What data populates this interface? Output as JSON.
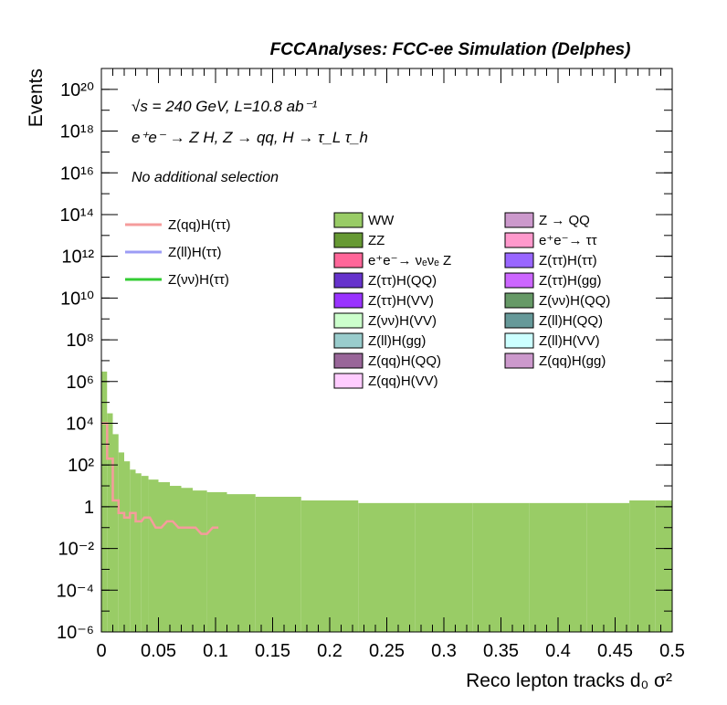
{
  "header": {
    "title": "FCCAnalyses: FCC-ee Simulation (Delphes)"
  },
  "annotations": {
    "energy_lumi": "√s = 240 GeV, L=10.8 ab⁻¹",
    "process": "e⁺e⁻ → Z H, Z → qq, H → τ_L τ_h",
    "selection": "No additional selection"
  },
  "chart_data": {
    "type": "histogram",
    "xlabel": "Reco lepton tracks d₀ σ²",
    "ylabel": "Events",
    "xlim": [
      0,
      0.5
    ],
    "ylim": [
      1e-06,
      1e+21
    ],
    "yscale": "log",
    "x_ticks": [
      "0",
      "0.05",
      "0.1",
      "0.15",
      "0.2",
      "0.25",
      "0.3",
      "0.35",
      "0.4",
      "0.45",
      "0.5"
    ],
    "y_ticks": [
      "10⁻⁶",
      "10⁻⁴",
      "10⁻²",
      "1",
      "10²",
      "10⁴",
      "10⁶",
      "10⁸",
      "10¹⁰",
      "10¹²",
      "10¹⁴",
      "10¹⁶",
      "10¹⁸",
      "10²⁰"
    ],
    "signal_legend": [
      {
        "label": "Z(qq)H(ττ)",
        "color": "#f59c9c"
      },
      {
        "label": "Z(ll)H(ττ)",
        "color": "#9c9cf5"
      },
      {
        "label": "Z(νν)H(ττ)",
        "color": "#33cc33"
      }
    ],
    "background_legend": [
      {
        "label": "WW",
        "color": "#99cc66"
      },
      {
        "label": "Z → QQ",
        "color": "#cc99cc"
      },
      {
        "label": "ZZ",
        "color": "#669933"
      },
      {
        "label": "e⁺e⁻→ ττ",
        "color": "#ff99cc"
      },
      {
        "label": "e⁺e⁻→ νₑνₑ Z",
        "color": "#ff6699"
      },
      {
        "label": "Z(ττ)H(ττ)",
        "color": "#9966ff"
      },
      {
        "label": "Z(ττ)H(QQ)",
        "color": "#6633cc"
      },
      {
        "label": "Z(ττ)H(gg)",
        "color": "#cc66ff"
      },
      {
        "label": "Z(ττ)H(VV)",
        "color": "#9933ff"
      },
      {
        "label": "Z(νν)H(QQ)",
        "color": "#669966"
      },
      {
        "label": "Z(νν)H(VV)",
        "color": "#ccffcc"
      },
      {
        "label": "Z(ll)H(QQ)",
        "color": "#669999"
      },
      {
        "label": "Z(ll)H(gg)",
        "color": "#99cccc"
      },
      {
        "label": "Z(ll)H(VV)",
        "color": "#ccffff"
      },
      {
        "label": "Z(qq)H(QQ)",
        "color": "#996699"
      },
      {
        "label": "Z(qq)H(gg)",
        "color": "#cc99cc"
      },
      {
        "label": "Z(qq)H(VV)",
        "color": "#ffccff"
      }
    ],
    "series_ww": {
      "name": "WW",
      "x_bins": [
        0.0025,
        0.0075,
        0.0125,
        0.0175,
        0.0225,
        0.0275,
        0.0325,
        0.0375,
        0.045,
        0.055,
        0.065,
        0.075,
        0.085,
        0.1,
        0.12,
        0.15,
        0.2,
        0.25,
        0.3,
        0.35,
        0.4,
        0.45,
        0.475,
        0.495
      ],
      "values": [
        3000000.0,
        30000.0,
        3000,
        400,
        150,
        60,
        40,
        30,
        20,
        15,
        10,
        8,
        6,
        5,
        4,
        3,
        2,
        1.5,
        1.5,
        1.5,
        1.5,
        1.5,
        2,
        2
      ]
    },
    "series_zqqhtautau": {
      "name": "Z(qq)H(ττ)",
      "x_bins": [
        0.0025,
        0.0075,
        0.0125,
        0.0175,
        0.0225,
        0.0275,
        0.0325,
        0.04,
        0.05,
        0.06,
        0.07,
        0.08,
        0.09,
        0.1
      ],
      "values": [
        10000.0,
        200,
        2,
        0.5,
        0.3,
        0.5,
        0.2,
        0.3,
        0.1,
        0.2,
        0.1,
        0.1,
        0.05,
        0.1
      ]
    }
  }
}
